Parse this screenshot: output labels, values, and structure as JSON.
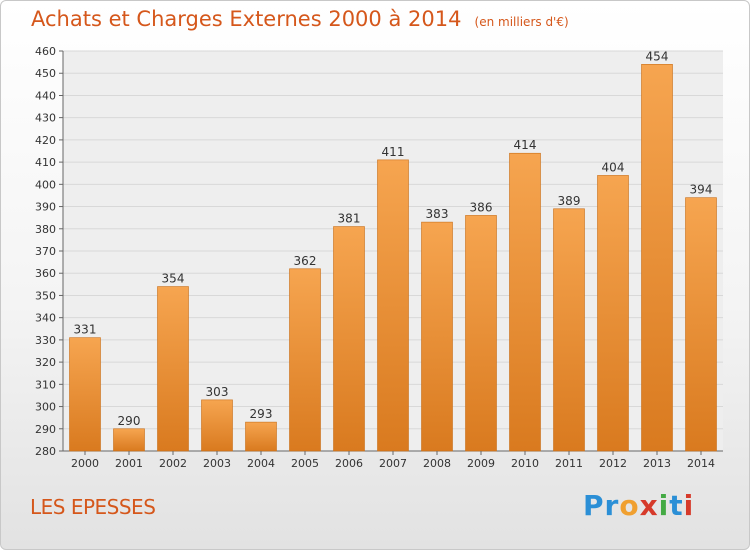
{
  "title": "Achats et Charges Externes 2000 à 2014",
  "subtitle": "(en milliers d'€)",
  "location": "LES EPESSES",
  "brand": {
    "name": "Proxiti",
    "letters": [
      "P",
      "r",
      "o",
      "x",
      "i",
      "t",
      "i"
    ],
    "letter_colors": [
      "#2b8fd6",
      "#2b8fd6",
      "#f0a030",
      "#d63a2a",
      "#44aa44",
      "#2b8fd6",
      "#d63a2a"
    ]
  },
  "colors": {
    "bar_light": "#f6a550",
    "bar_dark": "#d97a1f",
    "bar_edge": "#c96e18",
    "title": "#d5571b",
    "grid": "#d8d8d8",
    "plot_bg": "#eeeeee"
  },
  "chart_data": {
    "type": "bar",
    "categories": [
      "2000",
      "2001",
      "2002",
      "2003",
      "2004",
      "2005",
      "2006",
      "2007",
      "2008",
      "2009",
      "2010",
      "2011",
      "2012",
      "2013",
      "2014"
    ],
    "values": [
      331,
      290,
      354,
      303,
      293,
      362,
      381,
      411,
      383,
      386,
      414,
      389,
      404,
      454,
      394
    ],
    "ylim": [
      280,
      460
    ],
    "ytick_step": 10,
    "grid": true,
    "xlabel": "",
    "ylabel": ""
  }
}
